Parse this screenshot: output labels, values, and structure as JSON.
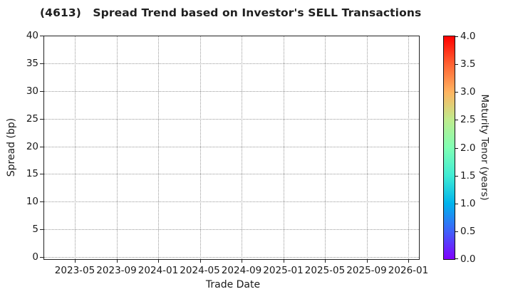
{
  "chart_data": {
    "type": "scatter",
    "title": "(4613)   Spread Trend based on Investor's SELL Transactions",
    "xlabel": "Trade Date",
    "ylabel": "Spread (bp)",
    "xticks": [
      "2023-05",
      "2023-09",
      "2024-01",
      "2024-05",
      "2024-09",
      "2025-01",
      "2025-05",
      "2025-09",
      "2026-01"
    ],
    "yticks": [
      0,
      5,
      10,
      15,
      20,
      25,
      30,
      35,
      40
    ],
    "ylim": [
      0,
      40
    ],
    "grid": true,
    "grid_style": "dotted",
    "series": [],
    "points": [],
    "axis_color": "#222222",
    "grid_color": "#999999",
    "colorbar": {
      "label": "Maturity Tenor (years)",
      "ticks": [
        "0.0",
        "0.5",
        "1.0",
        "1.5",
        "2.0",
        "2.5",
        "3.0",
        "3.5",
        "4.0"
      ],
      "range": [
        0.0,
        4.0
      ],
      "colormap": "rainbow",
      "gradient_bottom_to_top": [
        "#8000FF",
        "#4061FA",
        "#00B4EC",
        "#40ECD4",
        "#80FFB4",
        "#BFEC8E",
        "#FFB461",
        "#FF6232",
        "#FF0000"
      ]
    }
  }
}
